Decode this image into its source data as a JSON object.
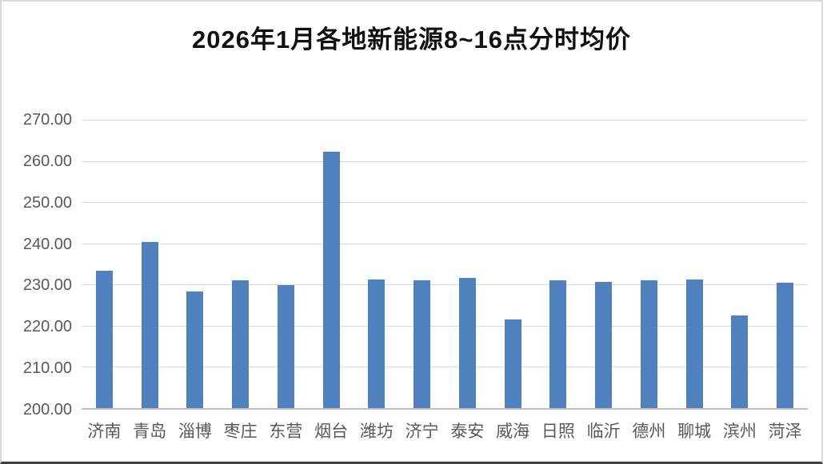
{
  "chart_data": {
    "type": "bar",
    "title": "2026年1月各地新能源8~16点分时均价",
    "categories": [
      "济南",
      "青岛",
      "淄博",
      "枣庄",
      "东营",
      "烟台",
      "潍坊",
      "济宁",
      "泰安",
      "威海",
      "日照",
      "临沂",
      "德州",
      "聊城",
      "滨州",
      "菏泽"
    ],
    "values": [
      233.3,
      240.4,
      228.4,
      231.0,
      229.9,
      262.2,
      231.2,
      231.0,
      231.7,
      221.5,
      231.0,
      230.6,
      231.1,
      231.3,
      222.5,
      230.4
    ],
    "xlabel": "",
    "ylabel": "",
    "ylim": [
      200,
      270
    ],
    "yticks": [
      200,
      210,
      220,
      230,
      240,
      250,
      260,
      270
    ],
    "ytick_labels": [
      "200.00",
      "210.00",
      "220.00",
      "230.00",
      "240.00",
      "250.00",
      "260.00",
      "270.00"
    ],
    "grid": true,
    "legend": false
  },
  "style": {
    "bar_color": "#4E81BD",
    "grid_color": "#D9D9D9",
    "axis_color": "#BFBFBF",
    "tick_text_color": "#595959",
    "title_color": "#111111",
    "background": "#FFFFFF"
  }
}
